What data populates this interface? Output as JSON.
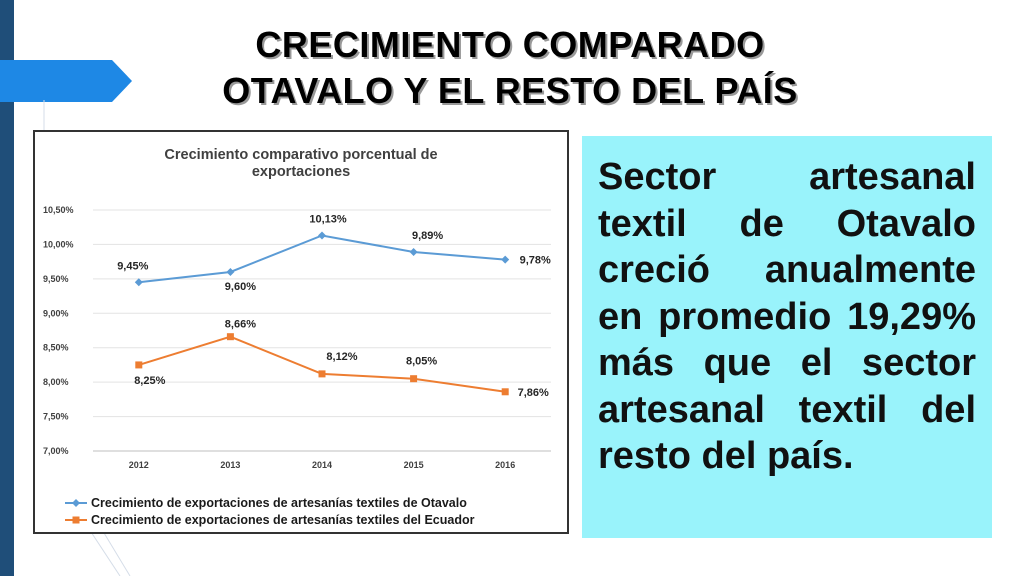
{
  "slide": {
    "title_line1": "CRECIMIENTO COMPARADO",
    "title_line2": "OTAVALO Y EL RESTO DEL PAÍS",
    "body_text": "Sector artesanal textil de Otavalo creció anualmente en promedio 19,29% más que el sector artesanal textil del resto del país.",
    "accent_color": "#1f4e79",
    "box_color": "#99f3fb"
  },
  "chart_data": {
    "type": "line",
    "title_line1": "Crecimiento comparativo porcentual de",
    "title_line2": "exportaciones",
    "categories": [
      "2012",
      "2013",
      "2014",
      "2015",
      "2016"
    ],
    "y_ticks": [
      "10,50%",
      "10,00%",
      "9,50%",
      "9,00%",
      "8,50%",
      "8,00%",
      "7,50%",
      "7,00%"
    ],
    "ylim": [
      7.0,
      10.5
    ],
    "grid": true,
    "legend_position": "bottom",
    "series": [
      {
        "name": "Crecimiento de exportaciones de artesanías textiles de Otavalo",
        "values": [
          9.45,
          9.6,
          10.13,
          9.89,
          9.78
        ],
        "labels": [
          "9,45%",
          "9,60%",
          "10,13%",
          "9,89%",
          "9,78%"
        ],
        "color": "#5b9bd5",
        "marker": "diamond"
      },
      {
        "name": "Crecimiento de exportaciones de artesanías textiles del Ecuador",
        "values": [
          8.25,
          8.66,
          8.12,
          8.05,
          7.86
        ],
        "labels": [
          "8,25%",
          "8,66%",
          "8,12%",
          "8,05%",
          "7,86%"
        ],
        "color": "#ed7d31",
        "marker": "square"
      }
    ]
  }
}
